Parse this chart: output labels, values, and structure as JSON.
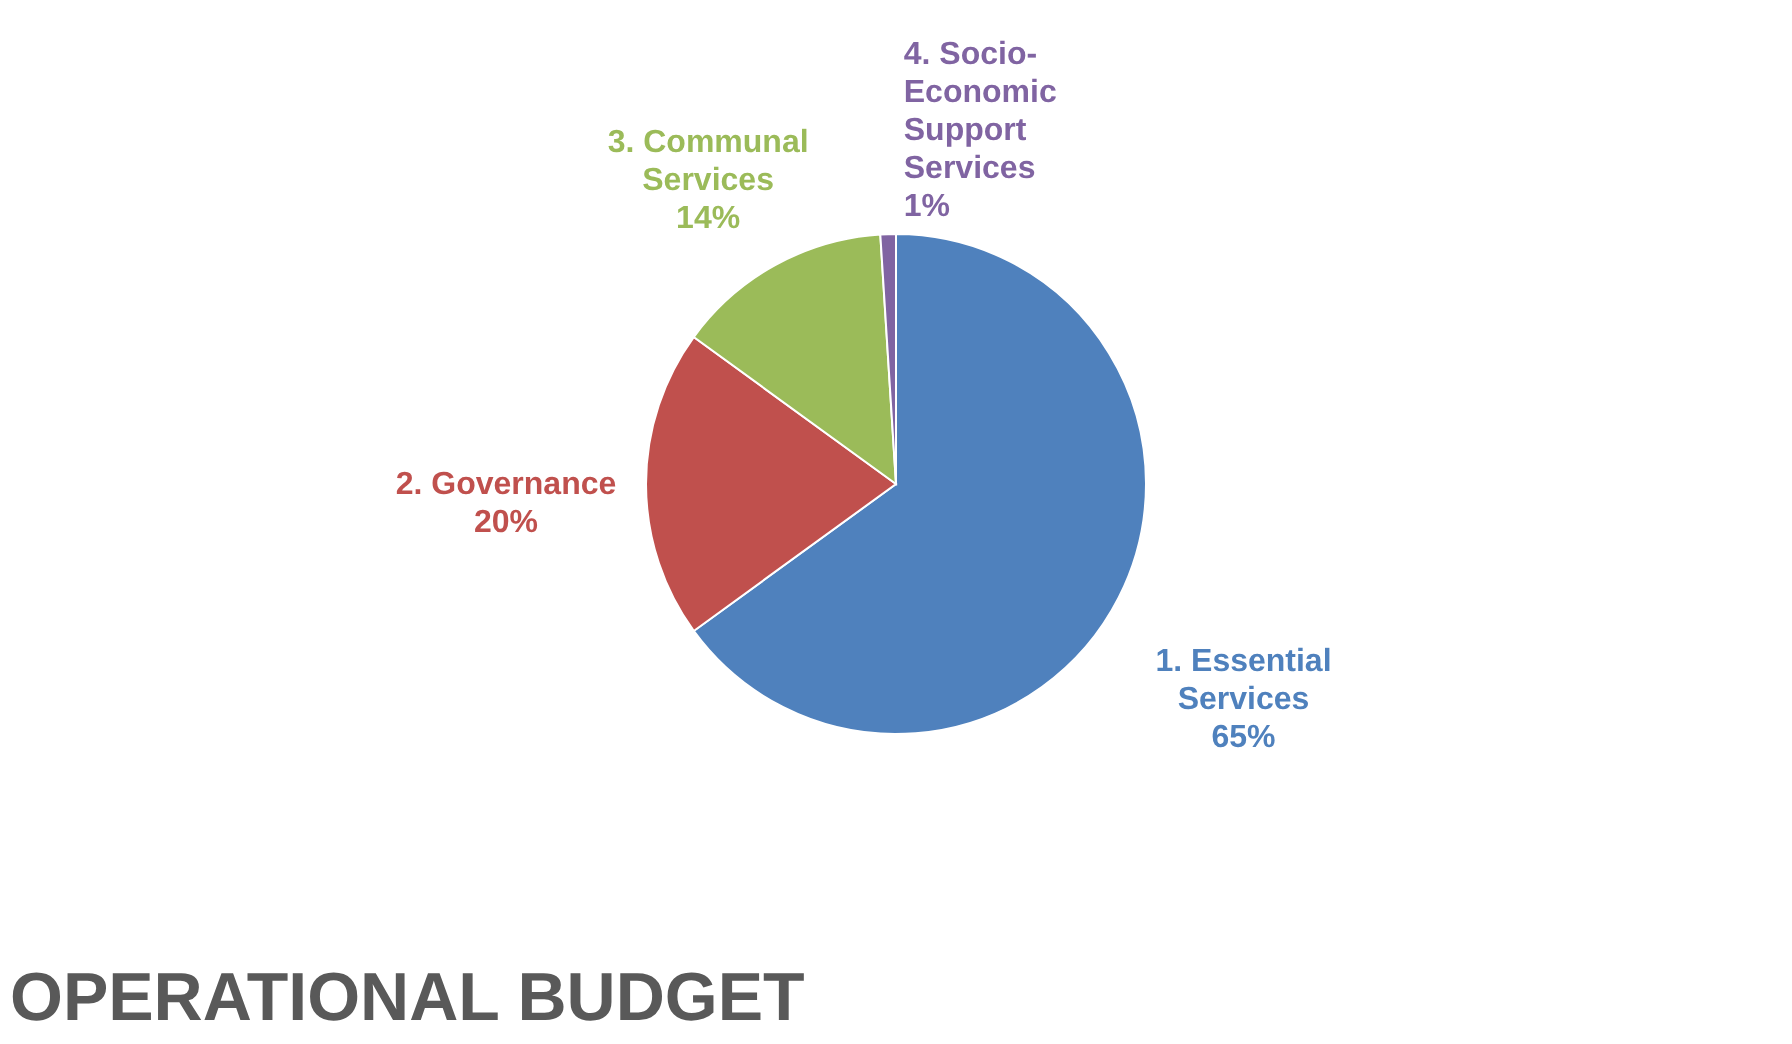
{
  "chart_data": {
    "type": "pie",
    "title": "OPERATIONAL BUDGET",
    "categories": [
      "1. Essential Services",
      "2. Governance",
      "3. Communal Services",
      "4. Socio-Economic Support Services"
    ],
    "values": [
      65,
      20,
      14,
      1
    ],
    "colors": [
      "#4f81bd",
      "#c0504d",
      "#9bbb59",
      "#8064a2"
    ],
    "value_labels": [
      "65%",
      "20%",
      "14%",
      "1%"
    ],
    "legend": false
  }
}
